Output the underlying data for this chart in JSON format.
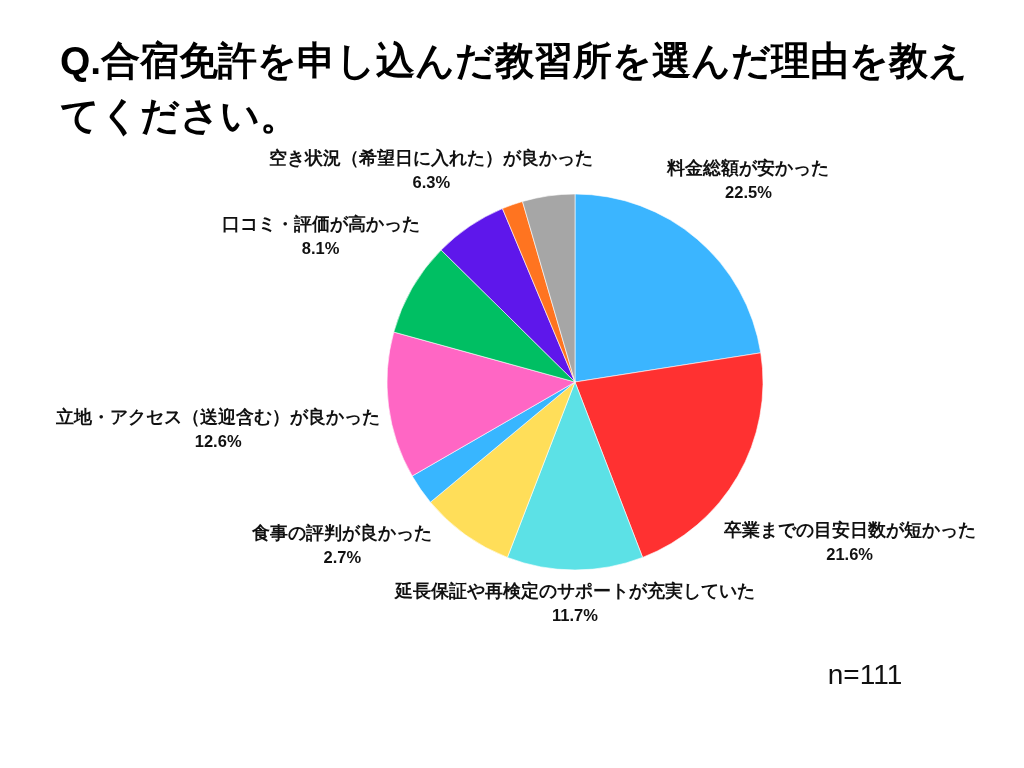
{
  "chart_data": {
    "type": "pie",
    "title": "Q.合宿免許を申し込んだ教習所を選んだ理由を教えてください。",
    "categories": [
      "料金総額が安かった",
      "卒業までの目安日数が短かった",
      "延長保証や再検定のサポートが充実していた",
      null,
      "食事の評判が良かった",
      "立地・アクセス（送迎含む）が良かった",
      "口コミ・評価が高かった",
      "空き状況（希望日に入れた）が良かった",
      null,
      null
    ],
    "values": [
      22.5,
      21.6,
      11.7,
      8.1,
      2.7,
      12.6,
      8.1,
      6.3,
      1.8,
      4.5
    ],
    "value_labels": [
      "22.5%",
      "21.6%",
      "11.7%",
      null,
      "2.7%",
      "12.6%",
      "8.1%",
      "6.3%",
      null,
      null
    ],
    "colors": [
      "#3bb5ff",
      "#ff3131",
      "#5ce1e6",
      "#ffde59",
      "#38b6ff",
      "#ff66c4",
      "#00bf63",
      "#5e17eb",
      "#ff7420",
      "#a6a6a6"
    ],
    "annotations": [
      "n=111"
    ]
  }
}
